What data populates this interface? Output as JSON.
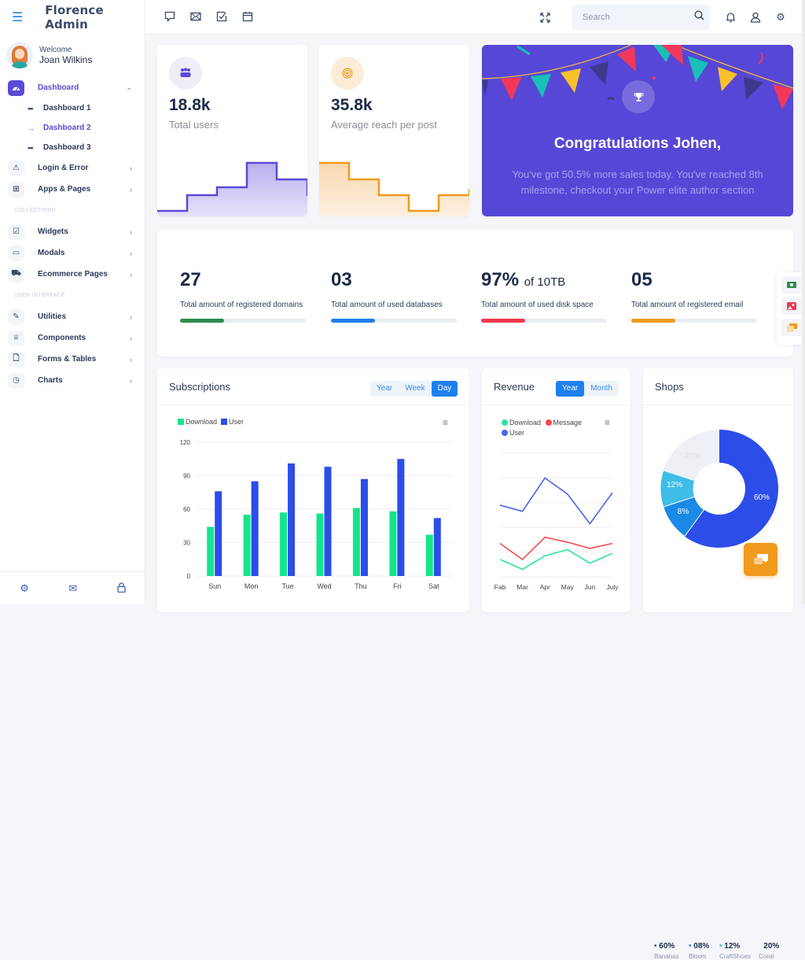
{
  "app": {
    "title": "Florence Admin"
  },
  "user": {
    "welcome": "Welcome",
    "name": "Joan Wilkins"
  },
  "sidebar": {
    "items": [
      {
        "label": "Dashboard",
        "icon": "dashboard-gauge-icon",
        "active": true,
        "expanded": true
      },
      {
        "label": "Login & Error",
        "icon": "warning-icon"
      },
      {
        "label": "Apps & Pages",
        "icon": "grid-icon"
      },
      {
        "label": "Widgets",
        "icon": "widget-icon"
      },
      {
        "label": "Modals",
        "icon": "modal-icon"
      },
      {
        "label": "Ecommerce Pages",
        "icon": "cart-icon"
      },
      {
        "label": "Utilities",
        "icon": "edit-icon"
      },
      {
        "label": "Components",
        "icon": "trophy-icon"
      },
      {
        "label": "Forms & Tables",
        "icon": "file-icon"
      },
      {
        "label": "Charts",
        "icon": "clock-chart-icon"
      }
    ],
    "subitems": [
      {
        "label": "Dashboard 1"
      },
      {
        "label": "Dashboard 2",
        "active": true
      },
      {
        "label": "Dashboard 3"
      }
    ],
    "sections": {
      "collections": "COLLECTIONS",
      "ui": "USER INTERFACE"
    },
    "footer_icons": [
      "gear-icon",
      "mail-icon",
      "lock-icon"
    ]
  },
  "topbar": {
    "left_icons": [
      "chat-icon",
      "mail-icon",
      "task-check-icon",
      "calendar-icon"
    ],
    "search": {
      "placeholder": "Search",
      "value": ""
    },
    "right_icons": [
      "fullscreen-icon",
      "bell-icon",
      "user-icon",
      "gear-icon"
    ]
  },
  "cards": {
    "users": {
      "value": "18.8k",
      "label": "Total users",
      "color": "#5a4bd6"
    },
    "reach": {
      "value": "35.8k",
      "label": "Average reach per post",
      "color": "#f09a1e"
    },
    "congrats": {
      "title": "Congratulations Johen,",
      "text": "You've got 50.5% more sales today. You've reached 8th milestone, checkout your Power elite author section"
    }
  },
  "stats": [
    {
      "value": "27",
      "suffix": "",
      "label": "Total amount of registered domains",
      "percent": 35,
      "color": "#2e8b4e"
    },
    {
      "value": "03",
      "suffix": "",
      "label": "Total amount of used databases",
      "percent": 35,
      "color": "#1d7ff0"
    },
    {
      "value": "97%",
      "suffix": "of 10TB",
      "label": "Total amount of used disk space",
      "percent": 35,
      "color": "#f0384e"
    },
    {
      "value": "05",
      "suffix": "",
      "label": "Total amount of registered email",
      "percent": 35,
      "color": "#f09a1e"
    }
  ],
  "subscriptions": {
    "title": "Subscriptions",
    "tabs": [
      "Year",
      "Week",
      "Day"
    ],
    "active_tab": "Day"
  },
  "revenue": {
    "title": "Revenue",
    "tabs": [
      "Year",
      "Month"
    ],
    "active_tab": "Year"
  },
  "shops": {
    "title": "Shops",
    "legend": [
      {
        "value": "60%",
        "name": "Bananas",
        "color": "#2c4de8"
      },
      {
        "value": "08%",
        "name": "Bloom",
        "color": "#1b8ae6"
      },
      {
        "value": "12%",
        "name": "CraftShoes",
        "color": "#3ebde8"
      },
      {
        "value": "20%",
        "name": "Coral",
        "color": "#eef0f5"
      }
    ]
  },
  "chart_data": [
    {
      "type": "bar",
      "title": "Subscriptions",
      "categories": [
        "Sun",
        "Mon",
        "Tue",
        "Wed",
        "Thu",
        "Fri",
        "Sat"
      ],
      "series": [
        {
          "name": "Download",
          "color": "#14e58c",
          "values": [
            44,
            55,
            57,
            56,
            61,
            58,
            37
          ]
        },
        {
          "name": "User",
          "color": "#2c4de8",
          "values": [
            76,
            85,
            101,
            98,
            87,
            105,
            52
          ]
        }
      ],
      "yticks": [
        0,
        30,
        60,
        90,
        120
      ],
      "ylim": [
        0,
        120
      ],
      "grid": true,
      "legend_position": "top-left"
    },
    {
      "type": "line",
      "title": "Revenue",
      "categories": [
        "Fab",
        "Mar",
        "Apr",
        "May",
        "Jun",
        "July"
      ],
      "series": [
        {
          "name": "Download",
          "color": "#2ee59c",
          "values": [
            14,
            6,
            17,
            22,
            11,
            19
          ]
        },
        {
          "name": "Message",
          "color": "#f5494e",
          "values": [
            27,
            14,
            32,
            28,
            23,
            27
          ]
        },
        {
          "name": "User",
          "color": "#4c64e8",
          "values": [
            58,
            53,
            80,
            67,
            43,
            68
          ]
        }
      ],
      "ylim": [
        0,
        100
      ],
      "grid": true,
      "legend_position": "top-left"
    },
    {
      "type": "pie",
      "title": "Shops",
      "categories": [
        "Bananas",
        "Bloom",
        "CraftShoes",
        "Coral"
      ],
      "values": [
        60,
        8,
        12,
        20
      ],
      "colors": [
        "#2c4de8",
        "#1b8ae6",
        "#3ebde8",
        "#eef0f5"
      ],
      "donut": true
    }
  ]
}
